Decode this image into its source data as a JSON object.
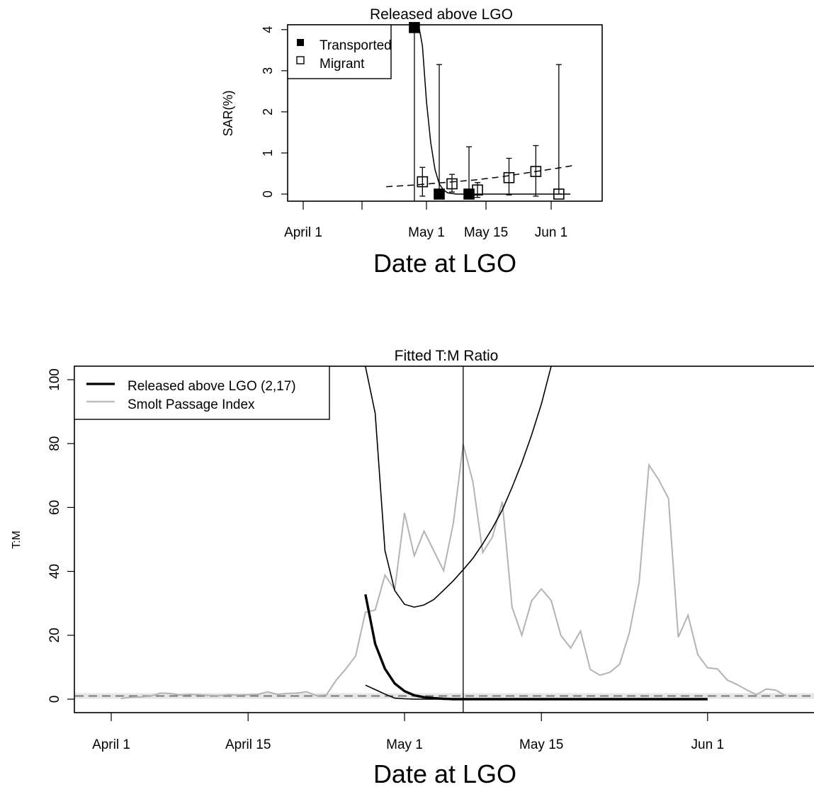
{
  "chart_data": [
    {
      "type": "scatter",
      "title": "Released above LGO",
      "xlabel": "Date at LGO",
      "ylabel": "SAR(%)",
      "x_tick_labels": [
        "April 1",
        "May 1",
        "May 15",
        "Jun 1"
      ],
      "y_tick_labels": [
        "0",
        "1",
        "2",
        "3",
        "4"
      ],
      "ylim": [
        -0.15,
        4.15
      ],
      "legend": {
        "placement": "top-left",
        "entries": [
          "Transported",
          "Migrant"
        ]
      },
      "series": [
        {
          "name": "Transported",
          "marker": "filled-square",
          "points": [
            {
              "x": "Apr 28",
              "y": 4.05,
              "lo": null,
              "hi": null
            },
            {
              "x": "May 4",
              "y": 0.0,
              "lo": 0.0,
              "hi": 3.15
            },
            {
              "x": "May 11",
              "y": 0.0,
              "lo": 0.0,
              "hi": 1.15
            }
          ]
        },
        {
          "name": "Migrant",
          "marker": "open-square",
          "points": [
            {
              "x": "Apr 30",
              "y": 0.3,
              "lo": -0.05,
              "hi": 0.65
            },
            {
              "x": "May 7",
              "y": 0.25,
              "lo": 0.05,
              "hi": 0.48
            },
            {
              "x": "May 13",
              "y": 0.1,
              "lo": -0.08,
              "hi": 0.28
            },
            {
              "x": "May 21",
              "y": 0.4,
              "lo": -0.02,
              "hi": 0.87
            },
            {
              "x": "May 28",
              "y": 0.55,
              "lo": -0.05,
              "hi": 1.18
            },
            {
              "x": "Jun 3",
              "y": 0.0,
              "lo": 0.0,
              "hi": 3.15
            }
          ]
        }
      ],
      "curves": [
        {
          "label": "transported-fit",
          "style": "solid",
          "points": [
            [
              "Apr 29",
              4.15
            ],
            [
              "Apr 30",
              3.6
            ],
            [
              "May 1",
              2.25
            ],
            [
              "May 2",
              1.25
            ],
            [
              "May 3",
              0.6
            ],
            [
              "May 4",
              0.25
            ],
            [
              "May 5",
              0.1
            ],
            [
              "May 6",
              0.03
            ],
            [
              "May 8",
              0.0
            ],
            [
              "Jun 6",
              0.0
            ]
          ]
        },
        {
          "label": "migrant-fit",
          "style": "dashed",
          "points": [
            [
              "Apr 21",
              0.18
            ],
            [
              "Apr 28",
              0.22
            ],
            [
              "May 5",
              0.28
            ],
            [
              "May 12",
              0.34
            ],
            [
              "May 19",
              0.42
            ],
            [
              "May 26",
              0.52
            ],
            [
              "Jun 2",
              0.62
            ],
            [
              "Jun 7",
              0.7
            ]
          ]
        }
      ],
      "vertical_line": "Apr 28"
    },
    {
      "type": "line",
      "title": "Fitted T:M Ratio",
      "xlabel": "Date at LGO",
      "ylabel": "T:M",
      "x_tick_labels": [
        "April 1",
        "April 15",
        "May 1",
        "May 15",
        "Jun 1"
      ],
      "y_tick_labels": [
        "0",
        "20",
        "40",
        "60",
        "80",
        "100"
      ],
      "ylim": [
        -4.3,
        104.2
      ],
      "legend": {
        "placement": "top-left",
        "entries": [
          "Released above LGO  (2,17)",
          "Smolt Passage Index"
        ]
      },
      "series": [
        {
          "name": "Released above LGO  (2,17)",
          "style": "thick-black",
          "x": [
            "Apr 27",
            "Apr 28",
            "Apr 29",
            "Apr 30",
            "May 1",
            "May 2",
            "May 3",
            "May 4",
            "May 5",
            "May 6",
            "Jun 1"
          ],
          "values": [
            32.8,
            17.3,
            9.5,
            4.9,
            2.5,
            1.2,
            0.6,
            0.3,
            0.1,
            0.0,
            0.0
          ]
        },
        {
          "name": "Smolt Passage Index",
          "style": "gray",
          "x": [
            "Apr 2",
            "Apr 3",
            "Apr 4",
            "Apr 5",
            "Apr 6",
            "Apr 7",
            "Apr 8",
            "Apr 9",
            "Apr 10",
            "Apr 11",
            "Apr 12",
            "Apr 13",
            "Apr 14",
            "Apr 15",
            "Apr 16",
            "Apr 17",
            "Apr 18",
            "Apr 19",
            "Apr 20",
            "Apr 21",
            "Apr 22",
            "Apr 23",
            "Apr 24",
            "Apr 25",
            "Apr 26",
            "Apr 27",
            "Apr 28",
            "Apr 29",
            "Apr 30",
            "May 1",
            "May 2",
            "May 3",
            "May 4",
            "May 5",
            "May 6",
            "May 7",
            "May 8",
            "May 9",
            "May 10",
            "May 11",
            "May 12",
            "May 13",
            "May 14",
            "May 15",
            "May 16",
            "May 17",
            "May 18",
            "May 19",
            "May 20",
            "May 21",
            "May 22",
            "May 23",
            "May 24",
            "May 25",
            "May 26",
            "May 27",
            "May 28",
            "May 29",
            "May 30",
            "May 31",
            "Jun 1",
            "Jun 2",
            "Jun 3",
            "Jun 4",
            "Jun 5",
            "Jun 6",
            "Jun 7",
            "Jun 8",
            "Jun 9"
          ],
          "values": [
            0.2,
            0.6,
            0.7,
            0.9,
            1.9,
            1.8,
            1.3,
            1.5,
            1.4,
            1.2,
            1.1,
            1.4,
            1.3,
            1.4,
            1.5,
            2.3,
            1.5,
            1.8,
            1.9,
            2.3,
            1.1,
            1.3,
            5.9,
            9.5,
            13.5,
            27.2,
            27.9,
            38.8,
            34.3,
            58.3,
            44.9,
            52.6,
            46.4,
            40.2,
            55.2,
            79.8,
            67.9,
            45.9,
            50.8,
            61.8,
            28.8,
            20.0,
            30.8,
            34.5,
            30.9,
            19.9,
            16.0,
            21.3,
            9.3,
            7.5,
            8.4,
            10.9,
            20.8,
            36.6,
            73.3,
            68.7,
            62.8,
            19.4,
            26.3,
            13.9,
            9.8,
            9.5,
            6.0,
            4.6,
            2.9,
            1.4,
            3.2,
            2.8,
            1.0
          ]
        }
      ],
      "curves": [
        {
          "label": "upper-band",
          "style": "thin-black",
          "x": [
            "Apr 27",
            "Apr 28",
            "Apr 29",
            "Apr 30",
            "May 1",
            "May 2",
            "May 3",
            "May 4",
            "May 5",
            "May 6",
            "May 7",
            "May 8",
            "May 9",
            "May 10",
            "May 11",
            "May 12",
            "May 13",
            "May 14",
            "May 15",
            "May 16"
          ],
          "values": [
            104.2,
            89.5,
            46.5,
            34.0,
            29.7,
            28.8,
            29.5,
            31.2,
            34.1,
            37.1,
            40.5,
            44.1,
            48.6,
            53.6,
            59.2,
            66.3,
            74.0,
            82.7,
            92.4,
            104.2
          ]
        },
        {
          "label": "lower-band",
          "style": "thin-black",
          "x": [
            "Apr 27",
            "Apr 28",
            "Apr 29",
            "Apr 30",
            "May 1",
            "May 2",
            "May 3",
            "May 4",
            "May 5",
            "May 6",
            "May 7",
            "May 8"
          ],
          "values": [
            4.4,
            3.0,
            1.6,
            0.3,
            0.1,
            0.0,
            0.0,
            0.0,
            0.0,
            0.0,
            0.0,
            0.0
          ]
        }
      ],
      "reference_line": {
        "y": 1,
        "style": "dashed-gray"
      },
      "vertical_line": "May 7"
    }
  ]
}
